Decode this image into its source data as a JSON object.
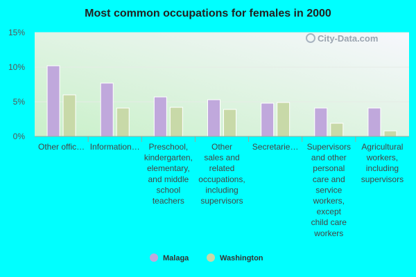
{
  "chart_data": {
    "type": "bar",
    "title": "Most common occupations for females in 2000",
    "categories": [
      [
        "Other offic…"
      ],
      [
        "Information…"
      ],
      [
        "Preschool,",
        "kindergarten,",
        "elementary,",
        "and middle",
        "school",
        "teachers"
      ],
      [
        "Other",
        "sales and",
        "related",
        "occupations,",
        "including",
        "supervisors"
      ],
      [
        "Secretarie…"
      ],
      [
        "Supervisors",
        "and other",
        "personal",
        "care and",
        "service",
        "workers,",
        "except",
        "child care",
        "workers"
      ],
      [
        "Agricultural",
        "workers,",
        "including",
        "supervisors"
      ]
    ],
    "series": [
      {
        "name": "Malaga",
        "color": "#c0a8dc",
        "values": [
          10.2,
          7.7,
          5.7,
          5.3,
          4.8,
          4.1,
          4.1
        ]
      },
      {
        "name": "Washington",
        "color": "#c8d9a8",
        "values": [
          6.0,
          4.1,
          4.2,
          3.9,
          4.9,
          1.9,
          0.8
        ]
      }
    ],
    "yticks": [
      "0%",
      "5%",
      "10%",
      "15%"
    ],
    "ylim": [
      0,
      15
    ],
    "xlabel": "",
    "ylabel": "",
    "grid": true,
    "legend_position": "bottom-center"
  },
  "watermark": "City-Data.com"
}
